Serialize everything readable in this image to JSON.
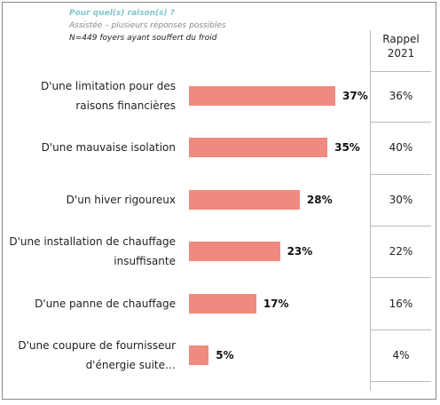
{
  "chart_data": {
    "type": "bar",
    "orientation": "horizontal",
    "title": "Pour quel(s) raison(s) ?",
    "subtitle": "Assistée – plusieurs réponses possibles",
    "note": "N=449 foyers ayant souffert du froid",
    "categories": [
      "D'une limitation pour des raisons financières",
      "D'une mauvaise isolation",
      "D'un hiver rigoureux",
      "D'une installation de chauffage insuffisante",
      "D'une panne de chauffage",
      "D'une coupure de fournisseur d'énergie suite…"
    ],
    "values": [
      37,
      35,
      28,
      23,
      17,
      5
    ],
    "value_labels": [
      "37%",
      "35%",
      "28%",
      "23%",
      "17%",
      "5%"
    ],
    "color": "#f08a7e",
    "comparison": {
      "title": "Rappel 2021",
      "values": [
        36,
        40,
        30,
        22,
        16,
        4
      ],
      "value_labels": [
        "36%",
        "40%",
        "30%",
        "22%",
        "16%",
        "4%"
      ]
    }
  }
}
